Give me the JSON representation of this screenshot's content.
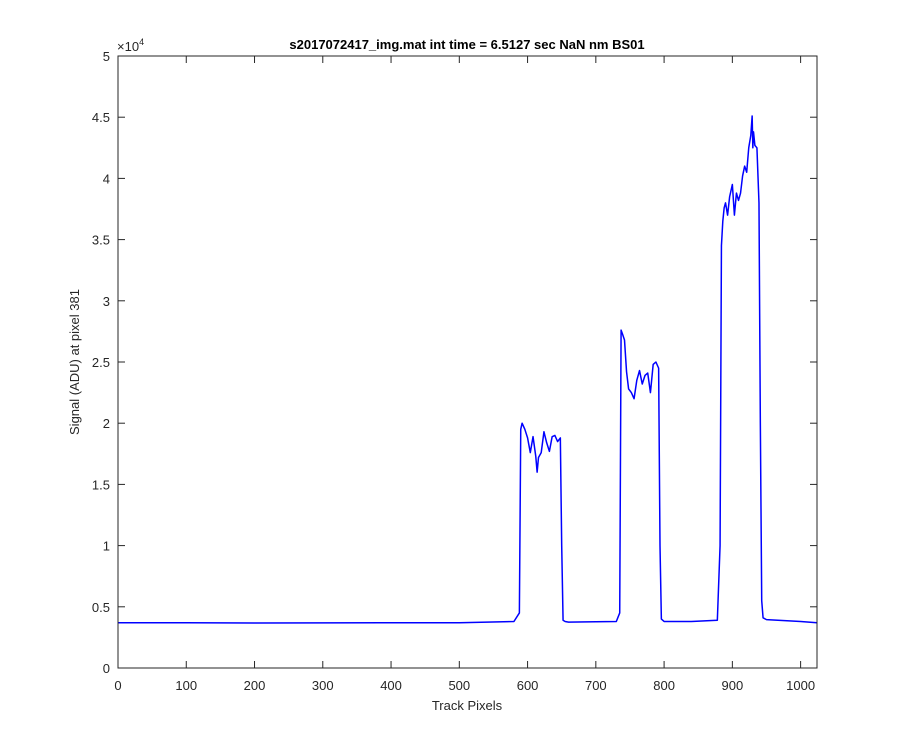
{
  "chart_data": {
    "type": "line",
    "title": "s2017072417_img.mat int time = 6.5127 sec  NaN nm BS01",
    "xlabel": "Track Pixels",
    "ylabel": "Signal (ADU) at pixel 381",
    "exponent_label": "×10",
    "exponent_power": "4",
    "xlim": [
      0,
      1024
    ],
    "ylim": [
      0,
      50000
    ],
    "xticks": [
      0,
      100,
      200,
      300,
      400,
      500,
      600,
      700,
      800,
      900,
      1000
    ],
    "yticks": [
      0,
      5000,
      10000,
      15000,
      20000,
      25000,
      30000,
      35000,
      40000,
      45000,
      50000
    ],
    "xtick_labels": [
      "0",
      "100",
      "200",
      "300",
      "400",
      "500",
      "600",
      "700",
      "800",
      "900",
      "1000"
    ],
    "ytick_labels": [
      "0",
      "0.5",
      "1",
      "1.5",
      "2",
      "2.5",
      "3",
      "3.5",
      "4",
      "4.5",
      "5"
    ],
    "grid": false,
    "series": [
      {
        "color": "#0000ff",
        "x": [
          0,
          100,
          200,
          300,
          400,
          500,
          580,
          588,
          590,
          592,
          596,
          600,
          604,
          608,
          612,
          614,
          616,
          620,
          624,
          628,
          632,
          636,
          640,
          644,
          648,
          650,
          652,
          655,
          660,
          700,
          730,
          735,
          737,
          739,
          742,
          745,
          748,
          752,
          756,
          760,
          764,
          768,
          772,
          776,
          780,
          784,
          788,
          792,
          794,
          796,
          800,
          840,
          878,
          882,
          884,
          886,
          888,
          890,
          893,
          896,
          900,
          903,
          906,
          909,
          912,
          915,
          918,
          921,
          924,
          927,
          929,
          930,
          931,
          933,
          936,
          939,
          941,
          943,
          945,
          950,
          1000,
          1024
        ],
        "y": [
          3700,
          3700,
          3680,
          3690,
          3700,
          3700,
          3800,
          4500,
          19500,
          20000,
          19500,
          18800,
          17600,
          18900,
          17300,
          16000,
          17200,
          17600,
          19300,
          18400,
          17700,
          18900,
          19000,
          18500,
          18800,
          10000,
          3900,
          3800,
          3750,
          3780,
          3800,
          4500,
          27600,
          27300,
          26800,
          24200,
          22800,
          22500,
          22000,
          23500,
          24300,
          23200,
          23900,
          24100,
          22500,
          24800,
          25000,
          24500,
          10000,
          4000,
          3800,
          3800,
          3900,
          10000,
          34500,
          36500,
          37600,
          38000,
          37000,
          38500,
          39500,
          37000,
          38800,
          38200,
          38800,
          40200,
          41000,
          40500,
          42500,
          43500,
          45100,
          42500,
          43800,
          42700,
          42500,
          38000,
          20000,
          5500,
          4100,
          3950,
          3800,
          3700
        ]
      }
    ]
  }
}
